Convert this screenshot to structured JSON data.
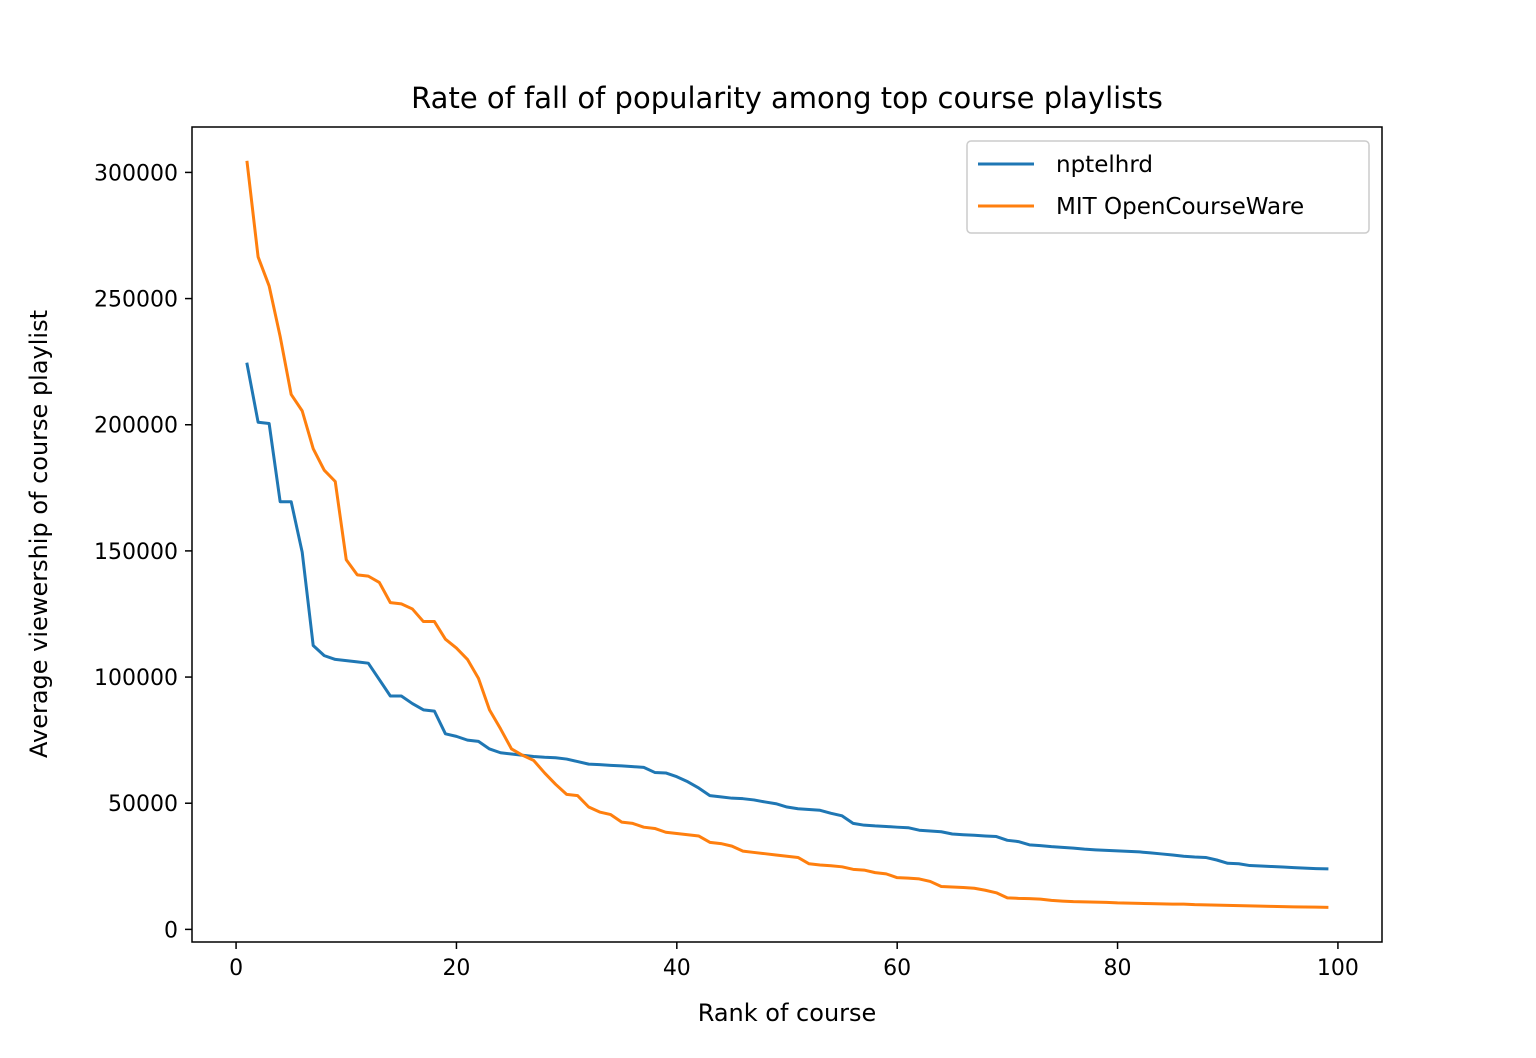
{
  "chart_data": {
    "type": "line",
    "title": "Rate of fall of popularity among top course playlists",
    "xlabel": "Rank of course",
    "ylabel": "Average viewership of course playlist",
    "xlim": [
      -4,
      104
    ],
    "ylim": [
      -5000,
      318000
    ],
    "xticks": [
      0,
      20,
      40,
      60,
      80,
      100
    ],
    "yticks": [
      0,
      50000,
      100000,
      150000,
      200000,
      250000,
      300000
    ],
    "grid": false,
    "legend": "top-right",
    "series": [
      {
        "name": "nptelhrd",
        "color": "#1f77b4",
        "x": [
          1,
          2,
          3,
          4,
          5,
          6,
          7,
          8,
          9,
          10,
          11,
          12,
          13,
          14,
          15,
          16,
          17,
          18,
          19,
          20,
          21,
          22,
          23,
          24,
          25,
          26,
          27,
          28,
          29,
          30,
          31,
          32,
          33,
          34,
          35,
          36,
          37,
          38,
          39,
          40,
          41,
          42,
          43,
          44,
          45,
          46,
          47,
          48,
          49,
          50,
          51,
          52,
          53,
          54,
          55,
          56,
          57,
          58,
          59,
          60,
          61,
          62,
          63,
          64,
          65,
          66,
          67,
          68,
          69,
          70,
          71,
          72,
          73,
          74,
          75,
          76,
          77,
          78,
          79,
          80,
          81,
          82,
          83,
          84,
          85,
          86,
          87,
          88,
          89,
          90,
          91,
          92,
          93,
          94,
          95,
          96,
          97,
          98,
          99
        ],
        "values": [
          224000,
          201000,
          200500,
          169500,
          169500,
          149500,
          112500,
          108500,
          107000,
          106500,
          106000,
          105500,
          99000,
          92500,
          92500,
          89500,
          87000,
          86500,
          77500,
          76500,
          75000,
          74500,
          71500,
          70000,
          69500,
          69000,
          68500,
          68200,
          68000,
          67500,
          66500,
          65500,
          65300,
          65000,
          64800,
          64500,
          64200,
          62200,
          62000,
          60500,
          58500,
          56000,
          53000,
          52500,
          52000,
          51800,
          51300,
          50500,
          49800,
          48500,
          47800,
          47500,
          47200,
          46000,
          45000,
          42000,
          41300,
          41000,
          40800,
          40500,
          40300,
          39300,
          39000,
          38700,
          37800,
          37500,
          37300,
          37000,
          36800,
          35300,
          34800,
          33500,
          33200,
          32800,
          32500,
          32200,
          31800,
          31500,
          31300,
          31100,
          30900,
          30700,
          30300,
          29900,
          29500,
          29000,
          28700,
          28500,
          27500,
          26200,
          26000,
          25300,
          25100,
          24900,
          24700,
          24500,
          24300,
          24100,
          24000
        ]
      },
      {
        "name": "MIT OpenCourseWare",
        "color": "#ff7f0e",
        "x": [
          1,
          2,
          3,
          4,
          5,
          6,
          7,
          8,
          9,
          10,
          11,
          12,
          13,
          14,
          15,
          16,
          17,
          18,
          19,
          20,
          21,
          22,
          23,
          24,
          25,
          26,
          27,
          28,
          29,
          30,
          31,
          32,
          33,
          34,
          35,
          36,
          37,
          38,
          39,
          40,
          41,
          42,
          43,
          44,
          45,
          46,
          47,
          48,
          49,
          50,
          51,
          52,
          53,
          54,
          55,
          56,
          57,
          58,
          59,
          60,
          61,
          62,
          63,
          64,
          65,
          66,
          67,
          68,
          69,
          70,
          71,
          72,
          73,
          74,
          75,
          76,
          77,
          78,
          79,
          80,
          81,
          82,
          83,
          84,
          85,
          86,
          87,
          88,
          89,
          90,
          91,
          92,
          93,
          94,
          95,
          96,
          97,
          98,
          99
        ],
        "values": [
          304000,
          266500,
          255000,
          235000,
          212000,
          205500,
          190500,
          182000,
          177500,
          146500,
          140500,
          140000,
          137500,
          129500,
          129000,
          127000,
          122000,
          122000,
          115000,
          111500,
          107000,
          99500,
          87000,
          79500,
          71500,
          69000,
          67000,
          62000,
          57500,
          53500,
          53000,
          48500,
          46500,
          45500,
          42500,
          42000,
          40500,
          40000,
          38500,
          38000,
          37500,
          37000,
          34500,
          34000,
          33000,
          31000,
          30500,
          30000,
          29500,
          29000,
          28500,
          26000,
          25500,
          25200,
          24800,
          23800,
          23500,
          22500,
          22000,
          20500,
          20300,
          20000,
          19000,
          17000,
          16800,
          16600,
          16300,
          15500,
          14500,
          12500,
          12300,
          12200,
          12000,
          11500,
          11200,
          11000,
          10900,
          10800,
          10700,
          10500,
          10400,
          10300,
          10200,
          10100,
          10000,
          10000,
          9800,
          9700,
          9600,
          9500,
          9400,
          9300,
          9200,
          9100,
          9000,
          8900,
          8850,
          8800,
          8750
        ]
      }
    ]
  }
}
